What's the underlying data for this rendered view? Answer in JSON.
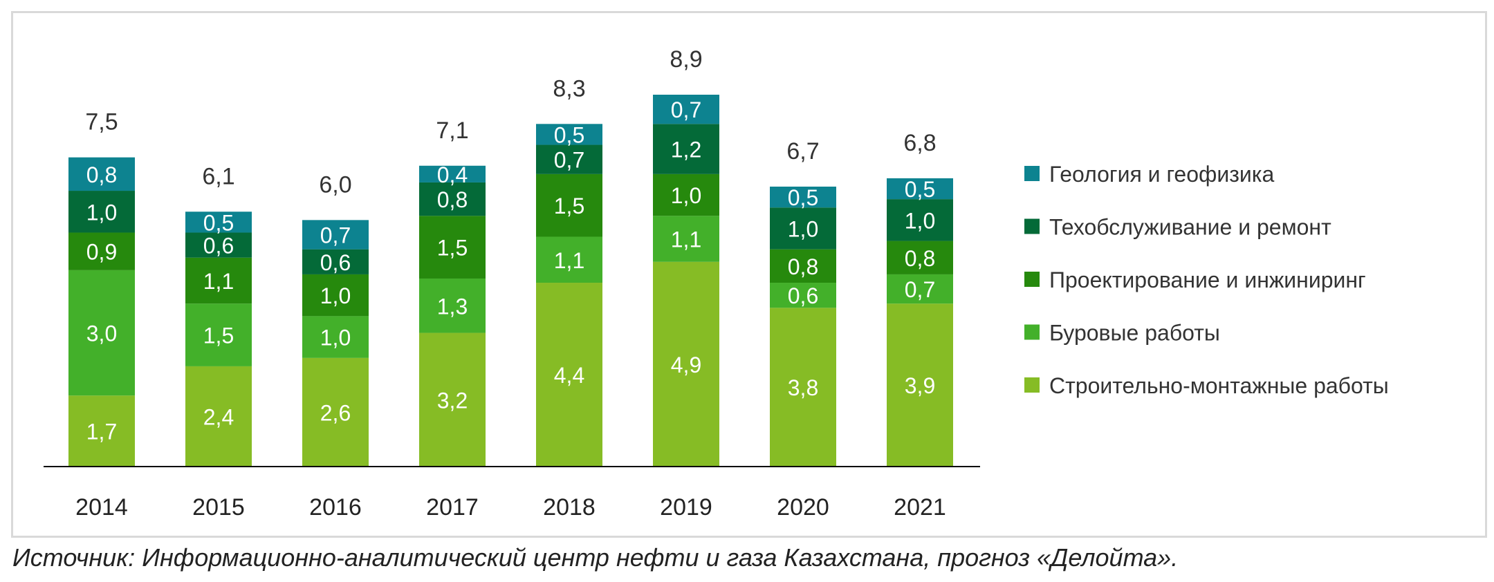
{
  "chart_data": {
    "type": "bar",
    "stacked": true,
    "categories": [
      "2014",
      "2015",
      "2016",
      "2017",
      "2018",
      "2019",
      "2020",
      "2021"
    ],
    "series": [
      {
        "name": "Строительно-монтажные работы",
        "color": "#86bc25",
        "values": [
          "1,7",
          "2,4",
          "2,6",
          "3,2",
          "4,4",
          "4,9",
          "3,8",
          "3,9"
        ]
      },
      {
        "name": "Буровые работы",
        "color": "#43b02a",
        "values": [
          "3,0",
          "1,5",
          "1,0",
          "1,3",
          "1,1",
          "1,1",
          "0,6",
          "0,7"
        ]
      },
      {
        "name": "Проектирование и инжиниринг",
        "color": "#26890d",
        "values": [
          "0,9",
          "1,1",
          "1,0",
          "1,5",
          "1,5",
          "1,0",
          "0,8",
          "0,8"
        ]
      },
      {
        "name": "Техобслуживание и ремонт",
        "color": "#046a38",
        "values": [
          "1,0",
          "0,6",
          "0,6",
          "0,8",
          "0,7",
          "1,2",
          "1,0",
          "1,0"
        ]
      },
      {
        "name": "Геология и геофизика",
        "color": "#0d8390",
        "values": [
          "0,8",
          "0,5",
          "0,7",
          "0,4",
          "0,5",
          "0,7",
          "0,5",
          "0,5"
        ]
      }
    ],
    "totals": [
      "7,5",
      "6,1",
      "6,0",
      "7,1",
      "8,3",
      "8,9",
      "6,7",
      "6,8"
    ],
    "legend_position": "right",
    "grid": false,
    "ylim": [
      0,
      8.9
    ]
  },
  "source": "Источник: Информационно-аналитический центр нефти и газа Казахстана, прогноз «Делойта»."
}
